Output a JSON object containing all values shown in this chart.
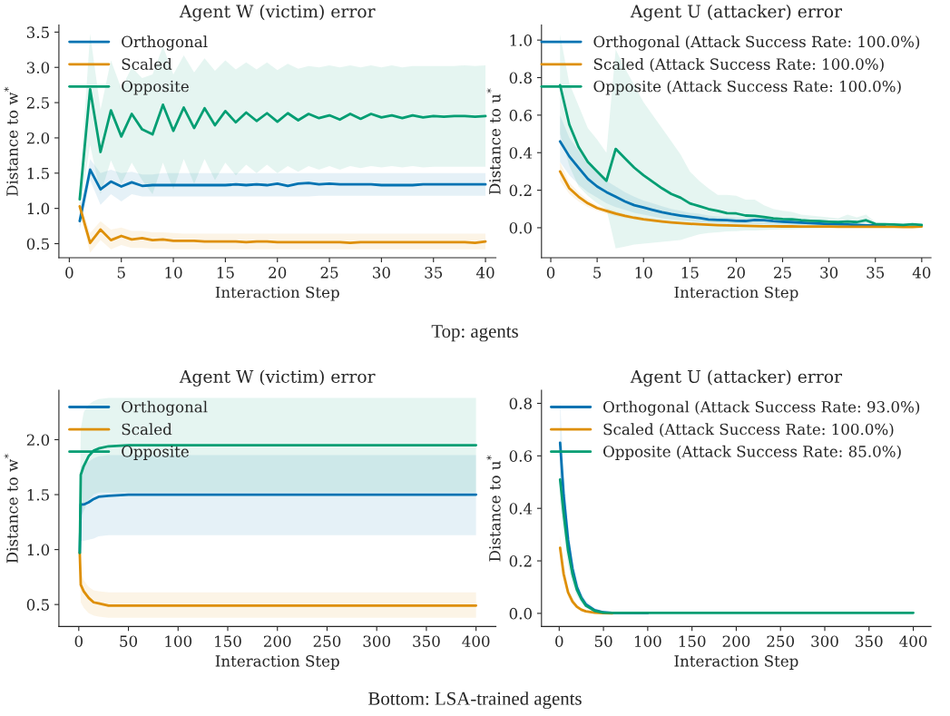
{
  "chart_data": [
    {
      "type": "line",
      "title": "Agent W (victim) error",
      "xlabel": "Interaction Step",
      "ylabel": "Distance to w$^{*}$",
      "legend": "top left",
      "grid": false,
      "xlim": [
        -1,
        41
      ],
      "ylim": [
        0.3,
        3.6
      ],
      "xticks": [
        0,
        5,
        10,
        15,
        20,
        25,
        30,
        35,
        40
      ],
      "yticks": [
        0.5,
        {
          "value": 1,
          "label": "1.0"
        },
        1.5,
        {
          "value": 2,
          "label": "2.0"
        },
        2.5,
        {
          "value": 3,
          "label": "3.0"
        },
        3.5
      ],
      "x": [
        1,
        2,
        3,
        4,
        5,
        6,
        7,
        8,
        9,
        10,
        11,
        12,
        13,
        14,
        15,
        16,
        17,
        18,
        19,
        20,
        21,
        22,
        23,
        24,
        25,
        26,
        27,
        28,
        29,
        30,
        31,
        32,
        33,
        34,
        35,
        36,
        37,
        38,
        39,
        40
      ],
      "series": [
        {
          "name": "Orthogonal",
          "color": "#0173b2",
          "values": [
            0.82,
            1.55,
            1.27,
            1.38,
            1.31,
            1.37,
            1.32,
            1.33,
            1.33,
            1.33,
            1.33,
            1.33,
            1.33,
            1.33,
            1.33,
            1.34,
            1.33,
            1.34,
            1.33,
            1.35,
            1.32,
            1.35,
            1.36,
            1.34,
            1.35,
            1.34,
            1.34,
            1.34,
            1.34,
            1.33,
            1.33,
            1.33,
            1.33,
            1.34,
            1.34,
            1.34,
            1.34,
            1.34,
            1.34,
            1.34
          ],
          "lower": [
            0.7,
            1.4,
            1.05,
            1.2,
            1.1,
            1.2,
            1.17,
            1.17,
            1.17,
            1.17,
            1.17,
            1.17,
            1.17,
            1.17,
            1.17,
            1.17,
            1.17,
            1.17,
            1.17,
            1.17,
            1.17,
            1.17,
            1.17,
            1.18,
            1.18,
            1.18,
            1.18,
            1.18,
            1.18,
            1.18,
            1.18,
            1.18,
            1.18,
            1.18,
            1.18,
            1.18,
            1.18,
            1.18,
            1.18,
            1.18
          ],
          "upper": [
            0.95,
            1.7,
            1.5,
            1.55,
            1.5,
            1.52,
            1.48,
            1.48,
            1.5,
            1.5,
            1.5,
            1.5,
            1.5,
            1.5,
            1.5,
            1.5,
            1.5,
            1.5,
            1.5,
            1.5,
            1.5,
            1.5,
            1.5,
            1.5,
            1.5,
            1.5,
            1.5,
            1.5,
            1.5,
            1.5,
            1.5,
            1.5,
            1.5,
            1.5,
            1.5,
            1.5,
            1.5,
            1.5,
            1.5,
            1.5
          ]
        },
        {
          "name": "Scaled",
          "color": "#de8f05",
          "values": [
            1.03,
            0.51,
            0.7,
            0.55,
            0.61,
            0.56,
            0.58,
            0.55,
            0.56,
            0.54,
            0.54,
            0.54,
            0.53,
            0.53,
            0.53,
            0.53,
            0.52,
            0.53,
            0.53,
            0.52,
            0.52,
            0.52,
            0.52,
            0.52,
            0.52,
            0.52,
            0.51,
            0.52,
            0.52,
            0.52,
            0.52,
            0.52,
            0.52,
            0.52,
            0.52,
            0.52,
            0.52,
            0.52,
            0.51,
            0.53
          ],
          "lower": [
            0.95,
            0.37,
            0.55,
            0.42,
            0.48,
            0.44,
            0.44,
            0.43,
            0.43,
            0.42,
            0.42,
            0.42,
            0.42,
            0.42,
            0.42,
            0.42,
            0.42,
            0.42,
            0.42,
            0.42,
            0.42,
            0.42,
            0.42,
            0.42,
            0.42,
            0.42,
            0.42,
            0.42,
            0.42,
            0.42,
            0.42,
            0.42,
            0.42,
            0.42,
            0.42,
            0.42,
            0.42,
            0.42,
            0.42,
            0.42
          ],
          "upper": [
            1.1,
            0.65,
            0.82,
            0.7,
            0.73,
            0.68,
            0.68,
            0.66,
            0.66,
            0.65,
            0.64,
            0.64,
            0.64,
            0.64,
            0.64,
            0.64,
            0.64,
            0.64,
            0.64,
            0.64,
            0.64,
            0.64,
            0.64,
            0.64,
            0.64,
            0.64,
            0.64,
            0.64,
            0.64,
            0.64,
            0.64,
            0.64,
            0.64,
            0.64,
            0.64,
            0.64,
            0.64,
            0.64,
            0.64,
            0.64
          ]
        },
        {
          "name": "Opposite",
          "color": "#029e73",
          "values": [
            1.13,
            2.69,
            1.8,
            2.39,
            2.02,
            2.34,
            2.12,
            2.05,
            2.47,
            2.1,
            2.43,
            2.14,
            2.42,
            2.18,
            2.38,
            2.22,
            2.36,
            2.24,
            2.35,
            2.23,
            2.35,
            2.25,
            2.34,
            2.28,
            2.32,
            2.26,
            2.34,
            2.27,
            2.34,
            2.29,
            2.32,
            2.28,
            2.32,
            2.29,
            2.31,
            2.3,
            2.31,
            2.31,
            2.3,
            2.31
          ],
          "lower": [
            0.95,
            1.9,
            1.2,
            1.68,
            1.35,
            1.65,
            1.4,
            1.2,
            1.65,
            1.27,
            1.7,
            1.35,
            1.7,
            1.4,
            1.65,
            1.47,
            1.62,
            1.5,
            1.62,
            1.5,
            1.6,
            1.52,
            1.6,
            1.55,
            1.6,
            1.55,
            1.6,
            1.57,
            1.6,
            1.58,
            1.6,
            1.58,
            1.6,
            1.58,
            1.59,
            1.59,
            1.59,
            1.59,
            1.59,
            1.59
          ],
          "upper": [
            1.3,
            3.48,
            2.4,
            3.1,
            2.7,
            3.0,
            2.85,
            2.9,
            3.3,
            2.9,
            3.17,
            2.93,
            3.13,
            2.95,
            3.1,
            2.97,
            3.07,
            2.97,
            3.07,
            2.96,
            3.05,
            2.98,
            3.02,
            3.0,
            3.03,
            3.0,
            3.03,
            3.0,
            3.03,
            3.0,
            3.03,
            3.0,
            3.02,
            3.02,
            3.02,
            3.02,
            3.02,
            3.03,
            3.02,
            3.03
          ]
        }
      ],
      "annotations": [
        "Top: agents"
      ]
    },
    {
      "type": "line",
      "title": "Agent U (attacker) error",
      "xlabel": "Interaction Step",
      "ylabel": "Distance to u$^{*}$",
      "legend": "top right",
      "grid": false,
      "xlim": [
        -1,
        41
      ],
      "ylim": [
        -0.16,
        1.08
      ],
      "xticks": [
        0,
        5,
        10,
        15,
        20,
        25,
        30,
        35,
        40
      ],
      "yticks": [
        {
          "value": 0,
          "label": "0.0"
        },
        0.2,
        0.4,
        0.6,
        0.8,
        {
          "value": 1,
          "label": "1.0"
        }
      ],
      "x": [
        1,
        2,
        3,
        4,
        5,
        6,
        7,
        8,
        9,
        10,
        11,
        12,
        13,
        14,
        15,
        16,
        17,
        18,
        19,
        20,
        21,
        22,
        23,
        24,
        25,
        26,
        27,
        28,
        29,
        30,
        31,
        32,
        33,
        34,
        35,
        36,
        37,
        38,
        39,
        40
      ],
      "series": [
        {
          "name": "Orthogonal (Attack Success Rate: 100.0%)",
          "color": "#0173b2",
          "values": [
            0.46,
            0.38,
            0.32,
            0.26,
            0.22,
            0.19,
            0.165,
            0.14,
            0.12,
            0.108,
            0.095,
            0.083,
            0.073,
            0.065,
            0.058,
            0.052,
            0.044,
            0.042,
            0.04,
            0.037,
            0.036,
            0.042,
            0.04,
            0.035,
            0.032,
            0.03,
            0.027,
            0.025,
            0.022,
            0.02,
            0.018,
            0.017,
            0.015,
            0.013,
            0.012,
            0.011,
            null,
            null,
            null,
            null
          ],
          "lower": [
            0.35,
            0.28,
            0.23,
            0.19,
            0.16,
            0.13,
            0.11,
            0.095,
            0.08,
            0.07,
            0.06,
            0.05,
            0.045,
            0.04,
            0.035,
            0.03,
            0.027,
            0.025,
            0.023,
            0.02,
            0.02,
            0.02,
            0.018,
            0.016,
            0.015,
            0.013,
            0.012,
            0.01,
            0.009,
            0.008,
            0.007,
            0.006,
            0.005,
            0.005,
            0.005,
            0.005,
            0.005,
            0.005,
            0.005,
            0.005
          ],
          "upper": [
            0.6,
            0.48,
            0.41,
            0.34,
            0.29,
            0.25,
            0.22,
            0.19,
            0.165,
            0.145,
            0.13,
            0.115,
            0.1,
            0.09,
            0.08,
            0.075,
            0.065,
            0.06,
            0.057,
            0.054,
            0.052,
            0.06,
            0.058,
            0.052,
            0.048,
            0.045,
            0.042,
            0.038,
            0.034,
            0.03,
            0.028,
            0.026,
            0.024,
            0.022,
            0.02,
            0.018,
            0.017,
            0.017,
            0.019,
            0.019
          ]
        },
        {
          "name": "Scaled (Attack Success Rate: 100.0%)",
          "color": "#de8f05",
          "values": [
            0.3,
            0.21,
            0.165,
            0.13,
            0.105,
            0.09,
            0.075,
            0.063,
            0.053,
            0.045,
            0.039,
            0.033,
            0.028,
            0.024,
            0.021,
            0.018,
            0.016,
            0.014,
            0.012,
            0.011,
            0.01,
            0.009,
            0.008,
            0.008,
            0.007,
            0.007,
            0.006,
            0.006,
            0.006,
            0.006,
            0.005,
            0.005,
            0.005,
            0.005,
            0.005,
            0.005,
            0.005,
            0.004,
            0.004,
            0.007
          ],
          "lower": [
            0.25,
            0.18,
            0.14,
            0.11,
            0.09,
            0.075,
            0.062,
            0.052,
            0.043,
            0.036,
            0.031,
            0.026,
            0.022,
            0.019,
            0.016,
            0.014,
            0.012,
            0.011,
            0.009,
            0.008,
            0.007,
            0.006,
            0.005,
            0.005,
            0.004,
            0.004,
            0.003,
            0.003,
            0.003,
            0.003,
            0.002,
            0.002,
            0.002,
            0.002,
            0.002,
            0.002,
            0.002,
            0.001,
            0.001,
            0.003
          ],
          "upper": [
            0.35,
            0.24,
            0.19,
            0.15,
            0.12,
            0.105,
            0.088,
            0.074,
            0.063,
            0.054,
            0.047,
            0.04,
            0.034,
            0.029,
            0.026,
            0.022,
            0.02,
            0.017,
            0.015,
            0.014,
            0.013,
            0.012,
            0.011,
            0.011,
            0.01,
            0.01,
            0.009,
            0.009,
            0.009,
            0.009,
            0.008,
            0.008,
            0.008,
            0.008,
            0.008,
            0.008,
            0.008,
            0.007,
            0.007,
            0.011
          ]
        },
        {
          "name": "Opposite (Attack Success Rate: 100.0%)",
          "color": "#029e73",
          "values": [
            0.76,
            0.55,
            0.43,
            0.35,
            0.3,
            0.25,
            0.42,
            0.37,
            0.32,
            0.28,
            0.245,
            0.21,
            0.18,
            0.16,
            0.13,
            0.115,
            0.1,
            0.09,
            0.078,
            0.076,
            0.065,
            0.063,
            0.057,
            0.05,
            0.046,
            0.045,
            0.04,
            0.037,
            0.035,
            0.032,
            0.03,
            0.033,
            0.03,
            0.04,
            0.02,
            0.018,
            0.017,
            0.015,
            0.018,
            0.015
          ],
          "lower": [
            0.5,
            0.33,
            0.22,
            0.17,
            0.13,
            0.1,
            -0.11,
            -0.1,
            -0.09,
            -0.085,
            -0.08,
            -0.075,
            -0.07,
            -0.065,
            -0.05,
            -0.035,
            -0.028,
            -0.025,
            -0.02,
            -0.018,
            -0.015,
            -0.015,
            -0.012,
            -0.01,
            -0.008,
            -0.007,
            -0.005,
            -0.004,
            -0.003,
            -0.002,
            0.0,
            0.0,
            0.0,
            0.01,
            0.01,
            0.01,
            0.01,
            0.01,
            0.01,
            0.01
          ],
          "upper": [
            1.03,
            0.77,
            0.65,
            0.53,
            0.47,
            0.4,
            0.95,
            0.85,
            0.76,
            0.67,
            0.6,
            0.53,
            0.46,
            0.39,
            0.3,
            0.25,
            0.21,
            0.175,
            0.175,
            0.17,
            0.15,
            0.15,
            0.12,
            0.1,
            0.09,
            0.085,
            0.07,
            0.065,
            0.06,
            0.055,
            0.05,
            0.07,
            0.055,
            0.07,
            0.03,
            0.025,
            0.022,
            0.02,
            0.022,
            0.02
          ]
        }
      ]
    },
    {
      "type": "line",
      "title": "Agent W (victim) error",
      "xlabel": "Interaction Step",
      "ylabel": "Distance to w$^{*}$",
      "legend": "top left",
      "grid": false,
      "xlim": [
        -20,
        420
      ],
      "ylim": [
        0.3,
        2.45
      ],
      "xticks": [
        0,
        50,
        100,
        150,
        200,
        250,
        300,
        350,
        400
      ],
      "yticks": [
        0.5,
        {
          "value": 1,
          "label": "1.0"
        },
        1.5,
        {
          "value": 2,
          "label": "2.0"
        }
      ],
      "x": [
        1,
        2,
        5,
        10,
        15,
        20,
        30,
        50,
        100,
        400
      ],
      "series": [
        {
          "name": "Orthogonal",
          "color": "#0173b2",
          "values": [
            0.97,
            1.41,
            1.41,
            1.43,
            1.46,
            1.48,
            1.49,
            1.5,
            1.5,
            1.5
          ],
          "lower": [
            0.9,
            1.08,
            1.08,
            1.09,
            1.1,
            1.12,
            1.13,
            1.13,
            1.13,
            1.13
          ],
          "upper": [
            1.1,
            1.75,
            1.78,
            1.8,
            1.83,
            1.85,
            1.86,
            1.86,
            1.86,
            1.86
          ]
        },
        {
          "name": "Scaled",
          "color": "#de8f05",
          "values": [
            0.97,
            0.68,
            0.62,
            0.56,
            0.52,
            0.51,
            0.49,
            0.49,
            0.49,
            0.49
          ],
          "lower": [
            0.9,
            0.52,
            0.47,
            0.42,
            0.4,
            0.39,
            0.38,
            0.38,
            0.38,
            0.38
          ],
          "upper": [
            1.0,
            0.8,
            0.72,
            0.66,
            0.63,
            0.62,
            0.61,
            0.61,
            0.61,
            0.61
          ]
        },
        {
          "name": "Opposite",
          "color": "#029e73",
          "values": [
            0.97,
            1.68,
            1.76,
            1.85,
            1.9,
            1.92,
            1.94,
            1.95,
            1.95,
            1.95
          ],
          "lower": [
            0.9,
            1.3,
            1.35,
            1.45,
            1.5,
            1.52,
            1.52,
            1.52,
            1.52,
            1.52
          ],
          "upper": [
            1.2,
            2.1,
            2.25,
            2.32,
            2.35,
            2.37,
            2.38,
            2.38,
            2.38,
            2.38
          ]
        }
      ],
      "annotations": [
        "Bottom: LSA-trained agents"
      ]
    },
    {
      "type": "line",
      "title": "Agent U (attacker) error",
      "xlabel": "Interaction Step",
      "ylabel": "Distance to u$^{*}$",
      "legend": "top right",
      "grid": false,
      "xlim": [
        -20,
        420
      ],
      "ylim": [
        -0.05,
        0.85
      ],
      "xticks": [
        0,
        50,
        100,
        150,
        200,
        250,
        300,
        350,
        400
      ],
      "yticks": [
        {
          "value": 0,
          "label": "0.0"
        },
        0.2,
        0.4,
        0.6,
        0.8
      ],
      "x": [
        1,
        5,
        10,
        15,
        20,
        25,
        30,
        40,
        50,
        60,
        100,
        200,
        400
      ],
      "series": [
        {
          "name": "Orthogonal (Attack Success Rate: 93.0%)",
          "color": "#0173b2",
          "values": [
            0.65,
            0.45,
            0.28,
            0.17,
            0.1,
            0.06,
            0.035,
            0.012,
            0.004,
            0.002,
            0.001,
            null,
            null
          ],
          "lower": [
            0.5,
            0.35,
            0.22,
            0.13,
            0.075,
            0.045,
            0.025,
            0.008,
            0.002,
            0.001,
            0.0,
            0.0,
            0.0
          ],
          "upper": [
            0.81,
            0.55,
            0.34,
            0.21,
            0.13,
            0.08,
            0.05,
            0.02,
            0.008,
            0.004,
            0.002,
            0.002,
            0.002
          ]
        },
        {
          "name": "Scaled (Attack Success Rate: 100.0%)",
          "color": "#de8f05",
          "values": [
            0.25,
            0.15,
            0.08,
            0.045,
            0.025,
            0.014,
            0.008,
            0.003,
            0.001,
            0.0,
            null,
            null,
            null
          ],
          "lower": [
            0.2,
            0.12,
            0.06,
            0.033,
            0.018,
            0.01,
            0.005,
            0.001,
            0.0,
            0.0,
            0.0,
            0.0,
            0.0
          ],
          "upper": [
            0.3,
            0.19,
            0.1,
            0.06,
            0.035,
            0.02,
            0.012,
            0.005,
            0.002,
            0.001,
            0.001,
            0.001,
            0.001
          ]
        },
        {
          "name": "Opposite (Attack Success Rate: 85.0%)",
          "color": "#029e73",
          "values": [
            0.51,
            0.38,
            0.24,
            0.15,
            0.09,
            0.055,
            0.03,
            0.01,
            0.003,
            0.002,
            0.002,
            0.002,
            0.002
          ],
          "lower": [
            0.42,
            0.3,
            0.18,
            0.11,
            0.065,
            0.04,
            0.02,
            0.006,
            0.001,
            0.001,
            0.001,
            0.001,
            0.001
          ],
          "upper": [
            0.6,
            0.46,
            0.3,
            0.19,
            0.115,
            0.07,
            0.04,
            0.015,
            0.005,
            0.003,
            0.003,
            0.003,
            0.003
          ]
        }
      ]
    }
  ]
}
